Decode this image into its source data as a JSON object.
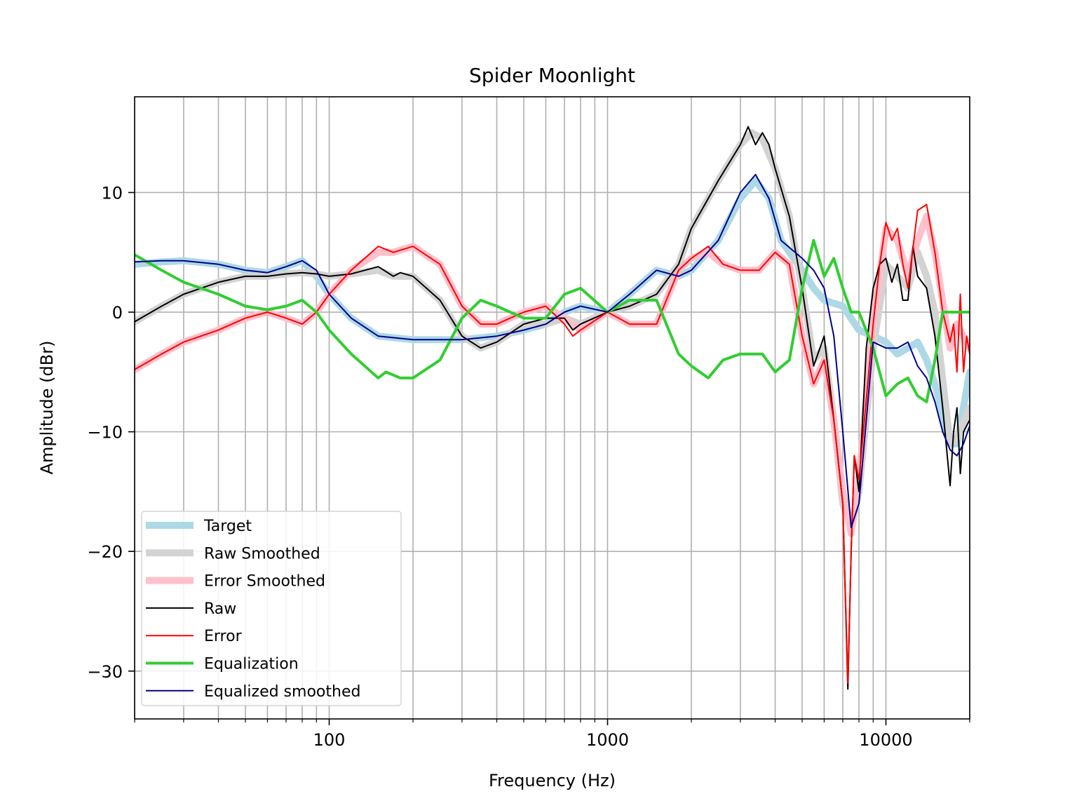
{
  "chart_data": {
    "type": "line",
    "title": "Spider Moonlight",
    "xlabel": "Frequency (Hz)",
    "ylabel": "Amplitude (dBr)",
    "xscale": "log",
    "xlim": [
      20,
      20000
    ],
    "ylim": [
      -34,
      18
    ],
    "xticks": [
      {
        "value": 100,
        "label": "100"
      },
      {
        "value": 1000,
        "label": "1000"
      },
      {
        "value": 10000,
        "label": "10000"
      }
    ],
    "yticks": [
      {
        "value": 10,
        "label": "10"
      },
      {
        "value": 0,
        "label": "0"
      },
      {
        "value": -10,
        "label": "−10"
      },
      {
        "value": -20,
        "label": "−20"
      },
      {
        "value": -30,
        "label": "−30"
      }
    ],
    "grid": true,
    "legend_position": "lower-left",
    "series": [
      {
        "name": "Target",
        "color": "#add8e6",
        "width": 10,
        "x": [
          20,
          25,
          30,
          40,
          50,
          60,
          70,
          80,
          90,
          100,
          120,
          150,
          200,
          300,
          400,
          500,
          600,
          700,
          800,
          1000,
          1200,
          1500,
          1800,
          2000,
          2500,
          3000,
          3400,
          3800,
          4200,
          5000,
          5500,
          6000,
          7000,
          8000,
          9000,
          10000,
          11000,
          12000,
          13000,
          14000,
          15000,
          17000,
          18000,
          20000
        ],
        "y": [
          4.0,
          4.2,
          4.3,
          4.0,
          3.5,
          3.3,
          3.8,
          4.3,
          3.0,
          1.5,
          -0.5,
          -2.0,
          -2.3,
          -2.3,
          -2.0,
          -1.5,
          -1.0,
          0.0,
          0.5,
          0.0,
          1.5,
          3.5,
          3.0,
          3.5,
          6.0,
          9.5,
          11.0,
          9.5,
          6.0,
          3.5,
          2.0,
          1.0,
          0.5,
          -1.5,
          -2.0,
          -2.5,
          -3.5,
          -3.0,
          -2.5,
          -4.0,
          -6.0,
          -11.0,
          -11.0,
          -5.0
        ]
      },
      {
        "name": "Raw Smoothed",
        "color": "#d3d3d3",
        "width": 10,
        "x": [
          20,
          25,
          30,
          40,
          50,
          60,
          70,
          80,
          90,
          100,
          120,
          150,
          170,
          200,
          250,
          300,
          350,
          400,
          500,
          600,
          700,
          800,
          1000,
          1200,
          1500,
          1800,
          2000,
          2500,
          3000,
          3300,
          3600,
          4000,
          4500,
          5000,
          5500,
          6000,
          6500,
          7000,
          7500,
          8000,
          9000,
          10000,
          11000,
          12000,
          13000,
          14000,
          15000,
          17000,
          18000,
          20000
        ],
        "y": [
          -0.8,
          0.5,
          1.5,
          2.5,
          3.0,
          3.0,
          3.2,
          3.3,
          3.2,
          3.0,
          3.2,
          3.5,
          3.0,
          3.0,
          1.0,
          -2.0,
          -3.0,
          -2.5,
          -1.0,
          -1.0,
          -0.5,
          -1.0,
          0.0,
          0.5,
          1.5,
          4.0,
          7.0,
          11.0,
          14.0,
          15.0,
          14.5,
          12.0,
          8.0,
          2.0,
          -4.0,
          -3.0,
          -9.0,
          -16.0,
          -18.0,
          -15.0,
          -3.0,
          4.0,
          3.0,
          2.0,
          5.0,
          3.0,
          0.0,
          -11.0,
          -10.5,
          -8.0
        ]
      },
      {
        "name": "Error Smoothed",
        "color": "#ffc0cb",
        "width": 10,
        "x": [
          20,
          25,
          30,
          40,
          50,
          60,
          70,
          80,
          90,
          100,
          120,
          150,
          170,
          200,
          250,
          300,
          350,
          400,
          500,
          600,
          700,
          800,
          1000,
          1200,
          1500,
          1800,
          2000,
          2300,
          2600,
          3000,
          3500,
          4000,
          4500,
          5000,
          5500,
          6000,
          6500,
          7000,
          7500,
          8000,
          9000,
          10000,
          11000,
          12000,
          13000,
          14000,
          15000,
          17000,
          18000,
          20000
        ],
        "y": [
          -4.8,
          -3.5,
          -2.5,
          -1.5,
          -0.5,
          0.0,
          -0.5,
          -1.0,
          0.0,
          1.5,
          3.5,
          5.0,
          5.0,
          5.5,
          4.0,
          0.5,
          -1.0,
          -1.0,
          0.0,
          0.5,
          -0.5,
          -1.5,
          0.0,
          -1.0,
          -1.0,
          3.5,
          4.5,
          5.0,
          4.0,
          3.5,
          3.5,
          5.0,
          4.0,
          -2.0,
          -6.0,
          -4.0,
          -9.0,
          -15.0,
          -18.5,
          -14.0,
          -1.0,
          7.0,
          6.0,
          3.0,
          6.0,
          8.0,
          5.0,
          -3.0,
          -1.0,
          -3.0
        ]
      },
      {
        "name": "Raw",
        "color": "#000000",
        "width": 2,
        "x": [
          20,
          25,
          30,
          40,
          50,
          60,
          70,
          80,
          90,
          100,
          120,
          150,
          170,
          180,
          200,
          250,
          300,
          350,
          400,
          500,
          600,
          700,
          750,
          800,
          1000,
          1200,
          1500,
          1800,
          2000,
          2500,
          3000,
          3200,
          3400,
          3600,
          3800,
          4000,
          4500,
          5000,
          5500,
          6000,
          6500,
          7000,
          7300,
          7500,
          7700,
          8000,
          8500,
          9000,
          9500,
          10000,
          10500,
          11000,
          11500,
          12000,
          12500,
          13000,
          14000,
          15000,
          16000,
          17000,
          17500,
          18000,
          18500,
          19000,
          20000
        ],
        "y": [
          -0.8,
          0.5,
          1.5,
          2.5,
          3.0,
          3.0,
          3.2,
          3.3,
          3.2,
          3.0,
          3.2,
          3.8,
          3.0,
          3.3,
          3.0,
          1.0,
          -2.0,
          -3.0,
          -2.5,
          -1.0,
          -0.5,
          -0.5,
          -1.5,
          -1.0,
          0.0,
          0.5,
          1.5,
          4.0,
          7.0,
          11.0,
          14.0,
          15.5,
          14.0,
          15.0,
          14.0,
          12.0,
          8.0,
          2.0,
          -4.5,
          -2.0,
          -9.0,
          -16.0,
          -31.5,
          -20.0,
          -12.0,
          -15.0,
          -3.0,
          2.0,
          4.0,
          4.5,
          2.5,
          4.0,
          1.0,
          1.0,
          5.5,
          3.0,
          2.0,
          -2.0,
          -8.0,
          -14.5,
          -10.0,
          -8.0,
          -13.5,
          -10.0,
          -9.0
        ]
      },
      {
        "name": "Error",
        "color": "#ff0000",
        "width": 2,
        "x": [
          20,
          25,
          30,
          40,
          50,
          60,
          70,
          80,
          90,
          100,
          120,
          150,
          170,
          200,
          250,
          300,
          350,
          400,
          500,
          600,
          700,
          750,
          800,
          1000,
          1200,
          1500,
          1800,
          2000,
          2300,
          2600,
          3000,
          3500,
          4000,
          4500,
          5000,
          5500,
          6000,
          6500,
          7000,
          7300,
          7500,
          7700,
          8000,
          9000,
          9500,
          10000,
          10500,
          11000,
          11500,
          12000,
          13000,
          14000,
          15000,
          16000,
          17000,
          17500,
          18000,
          18500,
          19000,
          19500,
          20000
        ],
        "y": [
          -4.8,
          -3.5,
          -2.5,
          -1.5,
          -0.5,
          0.0,
          -0.5,
          -1.0,
          0.0,
          1.5,
          3.5,
          5.5,
          5.0,
          5.5,
          4.0,
          0.5,
          -1.0,
          -1.0,
          0.0,
          0.5,
          -1.0,
          -2.0,
          -1.5,
          0.0,
          -1.0,
          -1.0,
          3.5,
          4.5,
          5.5,
          4.0,
          3.5,
          3.5,
          5.0,
          4.0,
          -2.0,
          -6.0,
          -4.0,
          -9.0,
          -16.0,
          -31.0,
          -20.0,
          -12.0,
          -14.0,
          -1.0,
          4.0,
          7.5,
          6.0,
          7.0,
          4.0,
          2.0,
          8.5,
          9.0,
          5.0,
          0.0,
          -2.5,
          -1.0,
          -5.0,
          1.5,
          -5.0,
          -2.0,
          -3.5
        ]
      },
      {
        "name": "Equalization",
        "color": "#32cd32",
        "width": 4,
        "x": [
          20,
          25,
          30,
          40,
          50,
          60,
          70,
          80,
          90,
          100,
          120,
          150,
          160,
          180,
          200,
          250,
          300,
          350,
          400,
          500,
          600,
          700,
          800,
          1000,
          1200,
          1500,
          1800,
          2000,
          2300,
          2600,
          3000,
          3300,
          3600,
          4000,
          4500,
          5000,
          5500,
          6000,
          6500,
          7000,
          7500,
          8000,
          9000,
          10000,
          11000,
          12000,
          13000,
          14000,
          15000,
          16000,
          17000,
          18000,
          20000
        ],
        "y": [
          4.8,
          3.5,
          2.5,
          1.5,
          0.5,
          0.2,
          0.5,
          1.0,
          0.0,
          -1.5,
          -3.5,
          -5.5,
          -5.0,
          -5.5,
          -5.5,
          -4.0,
          -0.5,
          1.0,
          0.5,
          -0.5,
          -0.5,
          1.5,
          2.0,
          0.0,
          1.0,
          1.0,
          -3.5,
          -4.5,
          -5.5,
          -4.0,
          -3.5,
          -3.5,
          -3.5,
          -5.0,
          -4.0,
          2.0,
          6.0,
          3.0,
          4.5,
          2.0,
          0.0,
          0.0,
          -3.0,
          -7.0,
          -6.0,
          -5.5,
          -7.0,
          -7.5,
          -4.0,
          0.0,
          0.0,
          0.0,
          0.0
        ]
      },
      {
        "name": "Equalized smoothed",
        "color": "#00008b",
        "width": 2,
        "x": [
          20,
          25,
          30,
          40,
          50,
          60,
          70,
          80,
          90,
          100,
          120,
          150,
          200,
          300,
          400,
          500,
          600,
          700,
          800,
          1000,
          1200,
          1500,
          1800,
          2000,
          2500,
          3000,
          3400,
          3800,
          4200,
          5000,
          5500,
          6000,
          6500,
          7000,
          7500,
          8000,
          9000,
          10000,
          11000,
          12000,
          13000,
          14000,
          15000,
          16000,
          17000,
          18000,
          19000,
          20000
        ],
        "y": [
          4.2,
          4.3,
          4.3,
          4.0,
          3.5,
          3.3,
          3.8,
          4.3,
          3.5,
          1.5,
          -0.5,
          -2.0,
          -2.3,
          -2.3,
          -2.0,
          -1.5,
          -1.0,
          0.0,
          0.5,
          0.0,
          1.5,
          3.5,
          3.0,
          3.5,
          6.0,
          10.0,
          11.5,
          9.5,
          6.0,
          4.5,
          3.5,
          2.0,
          -2.0,
          -10.0,
          -18.0,
          -16.0,
          -2.5,
          -3.0,
          -3.0,
          -2.5,
          -4.5,
          -5.5,
          -7.5,
          -10.0,
          -11.5,
          -12.0,
          -11.0,
          -9.5
        ]
      }
    ]
  }
}
